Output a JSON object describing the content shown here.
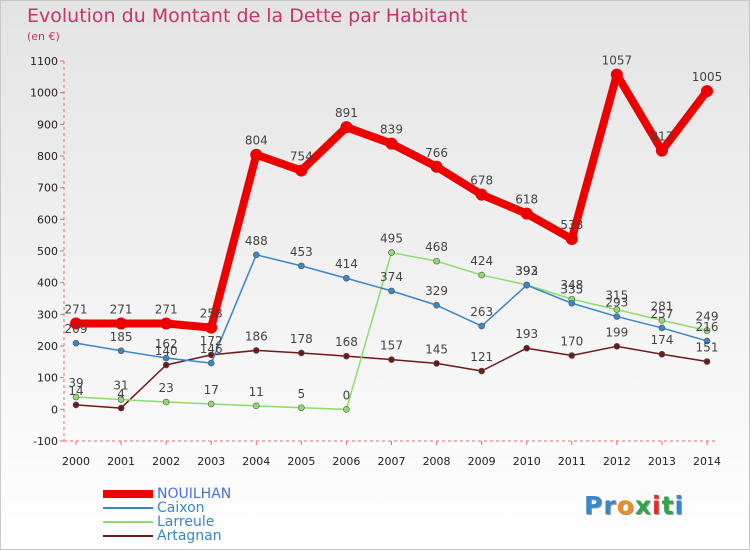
{
  "header": {
    "title": "Evolution du Montant de la Dette par Habitant",
    "subtitle": "(en €)"
  },
  "logo": {
    "text": "Proxiti",
    "letters": [
      {
        "ch": "P",
        "color": "#3a86c8"
      },
      {
        "ch": "r",
        "color": "#3a86c8"
      },
      {
        "ch": "o",
        "color": "#f08c1e"
      },
      {
        "ch": "x",
        "color": "#2ea54a"
      },
      {
        "ch": "i",
        "color": "#e52929"
      },
      {
        "ch": "t",
        "color": "#2ea54a"
      },
      {
        "ch": "i",
        "color": "#3a86c8"
      }
    ]
  },
  "chart_data": {
    "type": "line",
    "title": "Evolution du Montant de la Dette par Habitant",
    "subtitle": "(en €)",
    "x": [
      "2000",
      "2001",
      "2002",
      "2003",
      "2004",
      "2005",
      "2006",
      "2007",
      "2008",
      "2009",
      "2010",
      "2011",
      "2012",
      "2013",
      "2014"
    ],
    "ylim": [
      -100,
      1100
    ],
    "yticks": [
      -100,
      0,
      100,
      200,
      300,
      400,
      500,
      600,
      700,
      800,
      900,
      1000,
      1100
    ],
    "grid": false,
    "legend": "bottom-left",
    "series": [
      {
        "name": "NOUILHAN",
        "color": "#ee0000",
        "legend_text_color": "#4a6ee0",
        "values": [
          271,
          271,
          271,
          258,
          804,
          754,
          891,
          839,
          766,
          678,
          618,
          538,
          1057,
          817,
          1005
        ],
        "labels": [
          "271",
          "271",
          "271",
          "258",
          "804",
          "754",
          "891",
          "839",
          "766",
          "678",
          "618",
          "538",
          "1057",
          "817",
          "1005"
        ]
      },
      {
        "name": "Caixon",
        "color": "#3a86c8",
        "legend_text_color": "#3a86c8",
        "values": [
          209,
          185,
          162,
          146,
          488,
          453,
          414,
          374,
          329,
          263,
          392,
          335,
          293,
          257,
          216
        ],
        "labels": [
          "209",
          "185",
          "162",
          "146",
          "488",
          "453",
          "414",
          "374",
          "329",
          "263",
          "392",
          "335",
          "293",
          "257",
          "216"
        ]
      },
      {
        "name": "Larreule",
        "color": "#8fdc6c",
        "legend_text_color": "#3a86c8",
        "values": [
          39,
          31,
          23,
          17,
          11,
          5,
          0,
          495,
          468,
          424,
          393,
          348,
          315,
          281,
          249
        ],
        "labels": [
          "39",
          "31",
          "23",
          "17",
          "11",
          "5",
          "0",
          "495",
          "468",
          "424",
          "393",
          "348",
          "315",
          "281",
          "249"
        ]
      },
      {
        "name": "Artagnan",
        "color": "#6e1a1a",
        "legend_text_color": "#3a86c8",
        "values": [
          14,
          4,
          140,
          172,
          186,
          178,
          168,
          157,
          145,
          121,
          193,
          170,
          199,
          174,
          151
        ],
        "labels": [
          "14",
          "4",
          "140",
          "172",
          "186",
          "178",
          "168",
          "157",
          "145",
          "121",
          "193",
          "170",
          "199",
          "174",
          "151"
        ]
      }
    ]
  }
}
